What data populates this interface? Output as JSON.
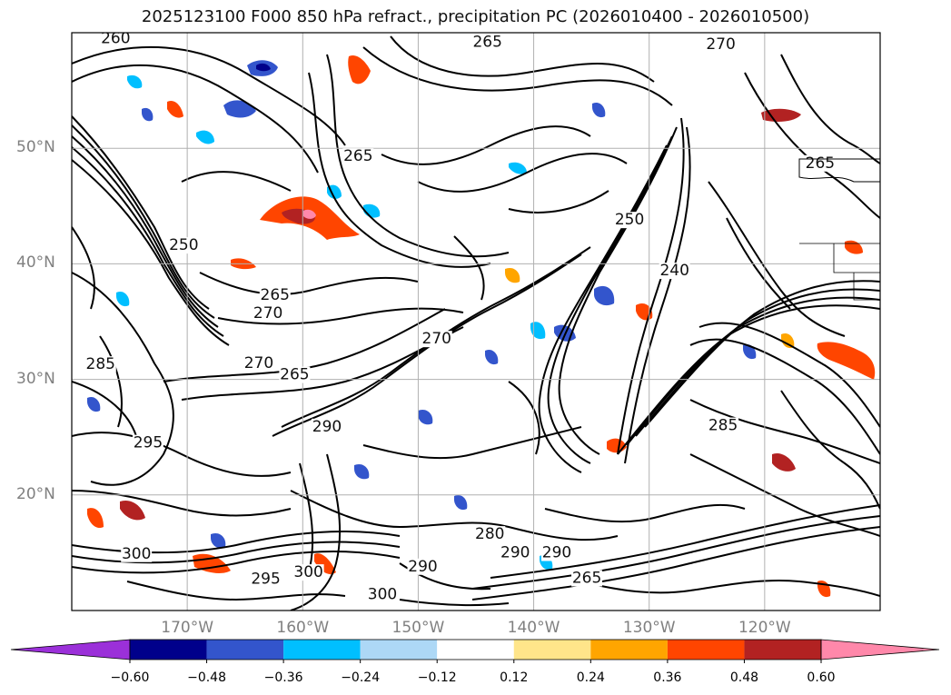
{
  "title": "2025123100 F000 850 hPa refract., precipitation PC (2026010400 - 2026010500)",
  "map": {
    "lat_labels": [
      {
        "text": "50°N",
        "lat": 50
      },
      {
        "text": "40°N",
        "lat": 40
      },
      {
        "text": "30°N",
        "lat": 30
      },
      {
        "text": "20°N",
        "lat": 20
      }
    ],
    "lon_labels": [
      {
        "text": "170°W",
        "lon": -170
      },
      {
        "text": "160°W",
        "lon": -160
      },
      {
        "text": "150°W",
        "lon": -150
      },
      {
        "text": "140°W",
        "lon": -140
      },
      {
        "text": "130°W",
        "lon": -130
      },
      {
        "text": "120°W",
        "lon": -120
      }
    ],
    "extent": {
      "lon_min": -180,
      "lon_max": -110,
      "lat_min": 10,
      "lat_max": 60
    },
    "contour_labels": [
      {
        "text": "260",
        "lon": -176.2,
        "lat": 59.1
      },
      {
        "text": "270",
        "lon": -123.8,
        "lat": 58.6
      },
      {
        "text": "265",
        "lon": -144.0,
        "lat": 58.8
      },
      {
        "text": "265",
        "lon": -155.2,
        "lat": 48.9
      },
      {
        "text": "250",
        "lon": -170.3,
        "lat": 41.2
      },
      {
        "text": "240",
        "lon": -127.8,
        "lat": 39.0
      },
      {
        "text": "250",
        "lon": -131.7,
        "lat": 43.4
      },
      {
        "text": "265",
        "lon": -162.4,
        "lat": 36.9
      },
      {
        "text": "270",
        "lon": -163.0,
        "lat": 35.3
      },
      {
        "text": "270",
        "lon": -163.8,
        "lat": 31.0
      },
      {
        "text": "265",
        "lon": -160.7,
        "lat": 30.0
      },
      {
        "text": "285",
        "lon": -177.5,
        "lat": 30.9
      },
      {
        "text": "295",
        "lon": -173.4,
        "lat": 24.1
      },
      {
        "text": "290",
        "lon": -157.9,
        "lat": 25.5
      },
      {
        "text": "285",
        "lon": -123.6,
        "lat": 25.6
      },
      {
        "text": "265",
        "lon": -115.2,
        "lat": 48.3
      },
      {
        "text": "290",
        "lon": -149.6,
        "lat": 13.4
      },
      {
        "text": "280",
        "lon": -143.8,
        "lat": 16.2
      },
      {
        "text": "290",
        "lon": -141.6,
        "lat": 14.6
      },
      {
        "text": "300",
        "lon": -159.5,
        "lat": 12.9
      },
      {
        "text": "300",
        "lon": -153.1,
        "lat": 11.0
      },
      {
        "text": "295",
        "lon": -163.2,
        "lat": 12.3
      },
      {
        "text": "300",
        "lon": -174.4,
        "lat": 14.5
      },
      {
        "text": "290",
        "lon": -138.0,
        "lat": 14.6
      },
      {
        "text": "265",
        "lon": -135.4,
        "lat": 12.4
      },
      {
        "text": "270",
        "lon": -148.4,
        "lat": 33.1
      }
    ]
  },
  "colorbar": {
    "ticks": [
      "−0.60",
      "−0.48",
      "−0.36",
      "−0.24",
      "−0.12",
      "0.12",
      "0.24",
      "0.36",
      "0.48",
      "0.60"
    ],
    "colors": [
      "#9b30d9",
      "#00008b",
      "#3355cc",
      "#00bfff",
      "#add8f6",
      "#ffffff",
      "#ffe58a",
      "#ffa500",
      "#ff4500",
      "#b22222",
      "#ff88aa",
      "#ff88aa"
    ],
    "extend": "both"
  },
  "style": {
    "contour_color": "#000000",
    "grid_color": "#b0b0b0",
    "axis_label_color": "#808080"
  }
}
